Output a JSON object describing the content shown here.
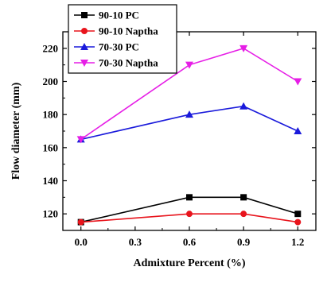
{
  "chart_data": {
    "type": "line",
    "title": "",
    "xlabel": "Admixture Percent (%)",
    "ylabel": "Flow diameter (mm)",
    "x": [
      0.0,
      0.6,
      0.9,
      1.2
    ],
    "xlim": [
      -0.1,
      1.3
    ],
    "ylim": [
      110,
      230
    ],
    "xticks": [
      0.0,
      0.3,
      0.6,
      0.9,
      1.2
    ],
    "xtick_labels": [
      "0.0",
      "0.3",
      "0.6",
      "0.9",
      "1.2"
    ],
    "yticks": [
      120,
      140,
      160,
      180,
      200,
      220
    ],
    "ytick_labels": [
      "120",
      "140",
      "160",
      "180",
      "200",
      "220"
    ],
    "grid": false,
    "legend_position": "top-left",
    "series": [
      {
        "name": "90-10 PC",
        "values": [
          115,
          130,
          130,
          120
        ],
        "color": "#000000",
        "marker": "square"
      },
      {
        "name": "90-10 Naptha",
        "values": [
          115,
          120,
          120,
          115
        ],
        "color": "#e8141c",
        "marker": "circle"
      },
      {
        "name": "70-30 PC",
        "values": [
          165,
          180,
          185,
          170
        ],
        "color": "#1a1adb",
        "marker": "triangle-up"
      },
      {
        "name": "70-30 Naptha",
        "values": [
          165,
          210,
          220,
          200
        ],
        "color": "#e61ee6",
        "marker": "triangle-down"
      }
    ]
  }
}
